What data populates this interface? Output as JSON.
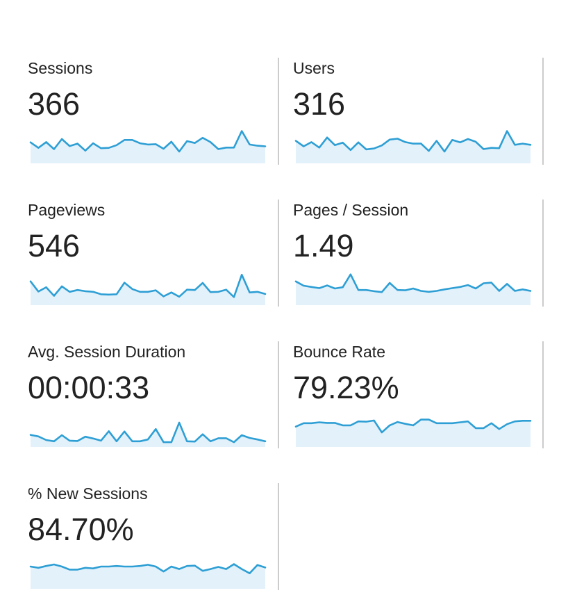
{
  "metrics": [
    {
      "id": "sessions",
      "label": "Sessions",
      "value": "366",
      "trend": [
        0.55,
        0.37,
        0.56,
        0.33,
        0.66,
        0.43,
        0.51,
        0.28,
        0.52,
        0.36,
        0.37,
        0.46,
        0.63,
        0.63,
        0.52,
        0.48,
        0.49,
        0.34,
        0.57,
        0.25,
        0.59,
        0.53,
        0.7,
        0.56,
        0.33,
        0.38,
        0.38,
        0.92,
        0.48,
        0.44,
        0.42
      ]
    },
    {
      "id": "users",
      "label": "Users",
      "value": "316",
      "trend": [
        0.6,
        0.42,
        0.56,
        0.38,
        0.71,
        0.46,
        0.54,
        0.3,
        0.55,
        0.32,
        0.35,
        0.45,
        0.64,
        0.67,
        0.56,
        0.51,
        0.51,
        0.27,
        0.6,
        0.25,
        0.63,
        0.55,
        0.66,
        0.57,
        0.33,
        0.37,
        0.36,
        0.92,
        0.47,
        0.51,
        0.47
      ]
    },
    {
      "id": "pageviews",
      "label": "Pageviews",
      "value": "546",
      "trend": [
        0.64,
        0.31,
        0.45,
        0.17,
        0.48,
        0.3,
        0.36,
        0.32,
        0.3,
        0.22,
        0.21,
        0.22,
        0.6,
        0.39,
        0.3,
        0.3,
        0.35,
        0.15,
        0.28,
        0.14,
        0.37,
        0.36,
        0.59,
        0.29,
        0.3,
        0.37,
        0.13,
        0.86,
        0.28,
        0.3,
        0.23
      ]
    },
    {
      "id": "pages-per-session",
      "label": "Pages / Session",
      "value": "1.49",
      "trend": [
        0.64,
        0.5,
        0.46,
        0.42,
        0.51,
        0.41,
        0.45,
        0.87,
        0.36,
        0.36,
        0.32,
        0.29,
        0.59,
        0.36,
        0.35,
        0.41,
        0.33,
        0.3,
        0.33,
        0.38,
        0.42,
        0.46,
        0.52,
        0.41,
        0.58,
        0.6,
        0.33,
        0.56,
        0.33,
        0.38,
        0.33
      ]
    },
    {
      "id": "avg-session-duration",
      "label": "Avg. Session Duration",
      "value": "00:00:33",
      "trend": [
        0.26,
        0.21,
        0.09,
        0.05,
        0.25,
        0.07,
        0.06,
        0.2,
        0.14,
        0.07,
        0.38,
        0.05,
        0.37,
        0.05,
        0.05,
        0.11,
        0.45,
        0.02,
        0.02,
        0.66,
        0.05,
        0.04,
        0.28,
        0.05,
        0.15,
        0.15,
        0.02,
        0.25,
        0.16,
        0.11,
        0.05
      ]
    },
    {
      "id": "bounce-rate",
      "label": "Bounce Rate",
      "value": "79.23%",
      "trend": [
        0.53,
        0.64,
        0.64,
        0.67,
        0.65,
        0.65,
        0.57,
        0.57,
        0.7,
        0.69,
        0.73,
        0.34,
        0.57,
        0.68,
        0.62,
        0.57,
        0.76,
        0.76,
        0.64,
        0.64,
        0.64,
        0.67,
        0.7,
        0.48,
        0.48,
        0.64,
        0.45,
        0.61,
        0.7,
        0.72,
        0.72
      ]
    },
    {
      "id": "percent-new-sessions",
      "label": "% New Sessions",
      "value": "84.70%",
      "trend": [
        0.59,
        0.55,
        0.61,
        0.66,
        0.59,
        0.49,
        0.49,
        0.55,
        0.53,
        0.59,
        0.59,
        0.61,
        0.59,
        0.59,
        0.61,
        0.65,
        0.59,
        0.43,
        0.59,
        0.51,
        0.61,
        0.62,
        0.45,
        0.51,
        0.58,
        0.51,
        0.67,
        0.51,
        0.37,
        0.64,
        0.56
      ]
    }
  ],
  "colors": {
    "line": "#2e9fd4",
    "fill": "#e3f1fb",
    "divider": "#cccccc",
    "text": "#222222"
  }
}
